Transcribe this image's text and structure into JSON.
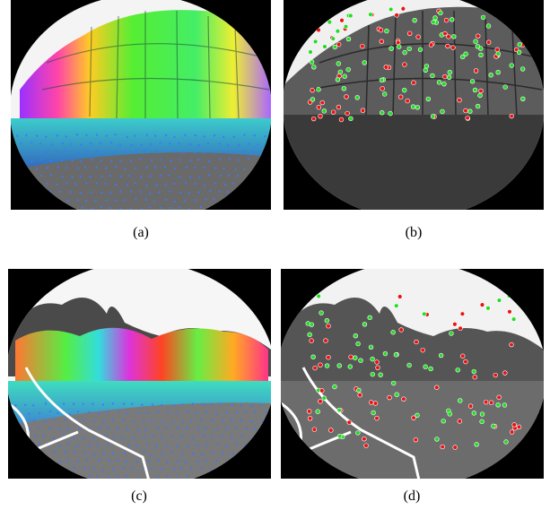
{
  "captions": {
    "a": "(a)",
    "b": "(b)",
    "c": "(c)",
    "d": "(d)"
  },
  "colors": {
    "inlier": "#22dd22",
    "outlier": "#ee1111",
    "ground_points": "#3a78ff",
    "trajectory": "#ffffff"
  },
  "panels": [
    {
      "id": "a",
      "scene": "building",
      "overlay": "colored-depth-projection"
    },
    {
      "id": "b",
      "scene": "building",
      "overlay": "feature-matches"
    },
    {
      "id": "c",
      "scene": "park",
      "overlay": "colored-depth-projection"
    },
    {
      "id": "d",
      "scene": "park",
      "overlay": "feature-matches"
    }
  ]
}
